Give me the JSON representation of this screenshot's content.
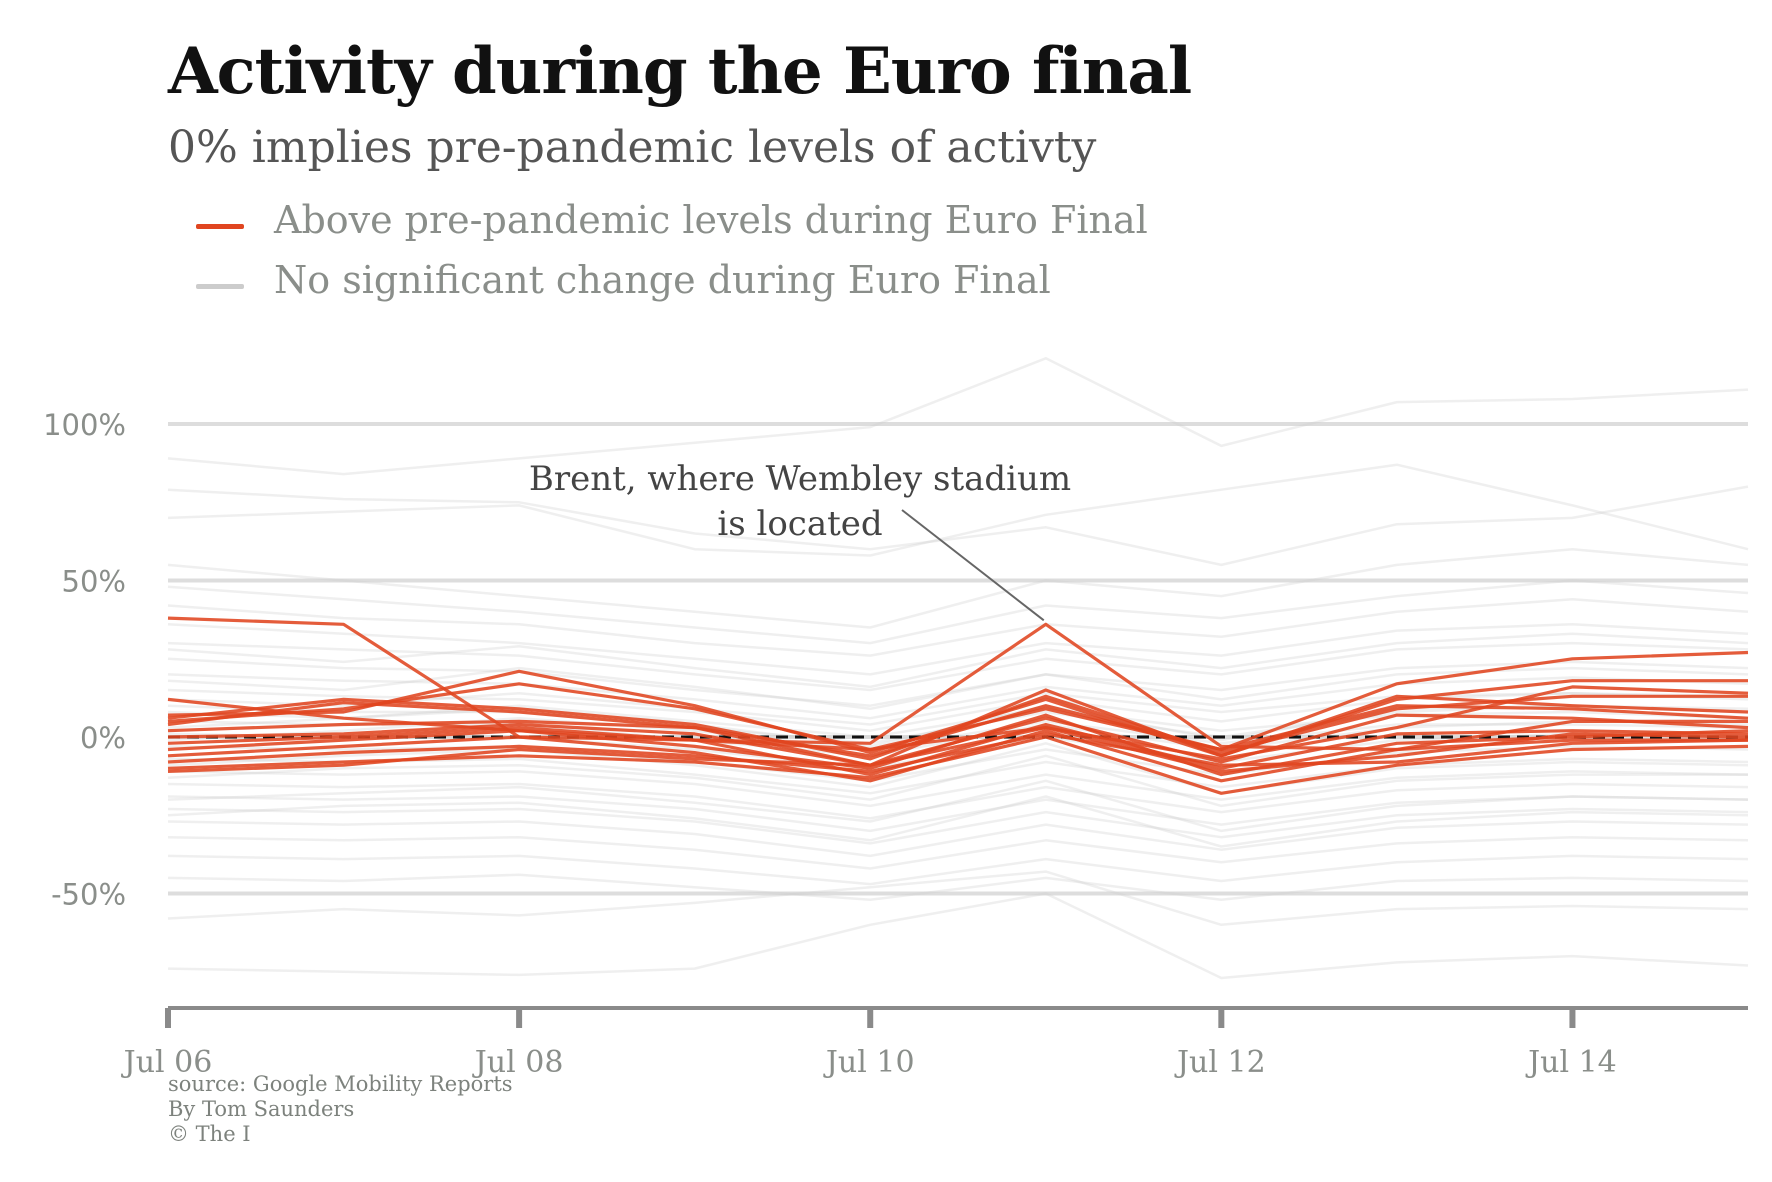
{
  "title": "Activity during the Euro final",
  "subtitle": "0% implies pre-pandemic levels of activty",
  "legend": [
    {
      "label": "Above pre-pandemic levels during Euro Final",
      "color": "#e04520"
    },
    {
      "label": "No significant change during Euro Final",
      "color": "#cccccc"
    }
  ],
  "annotation": {
    "line1": "Brent, where Wembley stadium",
    "line2": "is located",
    "target_x": "Jul 11",
    "target_y": 36
  },
  "credits": {
    "source": "source: Google Mobility Reports",
    "author": "By Tom Saunders",
    "copyright": "© The I"
  },
  "chart_data": {
    "type": "line",
    "x": [
      "Jul 06",
      "Jul 07",
      "Jul 08",
      "Jul 09",
      "Jul 10",
      "Jul 11",
      "Jul 12",
      "Jul 13",
      "Jul 14",
      "Jul 15"
    ],
    "x_ticks": [
      "Jul 06",
      "Jul 08",
      "Jul 10",
      "Jul 12",
      "Jul 14"
    ],
    "y_ticks": [
      100,
      50,
      0,
      -50
    ],
    "y_tick_labels": [
      "100%",
      "50%",
      "0%",
      "-50%"
    ],
    "ylim": [
      -88,
      120
    ],
    "reference_line": 0,
    "grid": true,
    "highlighted_color": "#e04520",
    "background_color": "#cccccc",
    "series": [
      {
        "group": "highlighted",
        "values": [
          38,
          36,
          0,
          -1,
          -2,
          36,
          -3,
          -4,
          5,
          5
        ]
      },
      {
        "group": "highlighted",
        "values": [
          12,
          6,
          2,
          -1,
          -4,
          3,
          -7,
          3,
          16,
          14
        ]
      },
      {
        "group": "highlighted",
        "values": [
          7,
          8,
          21,
          10,
          -5,
          12,
          -6,
          12,
          18,
          18
        ]
      },
      {
        "group": "highlighted",
        "values": [
          5,
          9,
          17,
          9,
          -4,
          9,
          -4,
          17,
          25,
          27
        ]
      },
      {
        "group": "highlighted",
        "values": [
          4,
          11,
          8,
          3,
          -9,
          15,
          -6,
          13,
          10,
          8
        ]
      },
      {
        "group": "highlighted",
        "values": [
          2,
          4,
          5,
          3,
          -6,
          10,
          -4,
          10,
          9,
          6
        ]
      },
      {
        "group": "highlighted",
        "values": [
          0,
          1,
          4,
          1,
          -9,
          6,
          -8,
          7,
          6,
          3
        ]
      },
      {
        "group": "highlighted",
        "values": [
          -2,
          0,
          3,
          -1,
          -12,
          4,
          -10,
          1,
          2,
          1
        ]
      },
      {
        "group": "highlighted",
        "values": [
          -4,
          -1,
          2,
          -3,
          -10,
          7,
          -12,
          -2,
          0,
          2
        ]
      },
      {
        "group": "highlighted",
        "values": [
          -6,
          -3,
          0,
          -5,
          -14,
          2,
          -14,
          -4,
          -1,
          -1
        ]
      },
      {
        "group": "highlighted",
        "values": [
          -8,
          -5,
          -3,
          -6,
          -11,
          1,
          -9,
          -8,
          -2,
          -1
        ]
      },
      {
        "group": "highlighted",
        "values": [
          -10,
          -8,
          -6,
          -8,
          -13,
          0,
          -18,
          -9,
          -4,
          -3
        ]
      },
      {
        "group": "highlighted",
        "values": [
          -11,
          -9,
          -4,
          -7,
          -9,
          3,
          -11,
          -6,
          1,
          0
        ]
      },
      {
        "group": "highlighted",
        "values": [
          6,
          12,
          9,
          4,
          -7,
          13,
          -5,
          9,
          13,
          13
        ]
      },
      {
        "group": "background",
        "values": [
          89,
          84,
          89,
          94,
          99,
          121,
          93,
          107,
          108,
          111
        ]
      },
      {
        "group": "background",
        "values": [
          79,
          76,
          75,
          65,
          60,
          67,
          55,
          68,
          70,
          80
        ]
      },
      {
        "group": "background",
        "values": [
          70,
          72,
          74,
          60,
          58,
          71,
          79,
          87,
          74,
          60
        ]
      },
      {
        "group": "background",
        "values": [
          -74,
          -75,
          -76,
          -74,
          -60,
          -50,
          -77,
          -72,
          -70,
          -73
        ]
      },
      {
        "group": "background",
        "values": [
          -58,
          -55,
          -57,
          -53,
          -48,
          -43,
          -60,
          -55,
          -54,
          -55
        ]
      },
      {
        "group": "background",
        "values": [
          55,
          50,
          45,
          40,
          35,
          50,
          45,
          55,
          60,
          55
        ]
      },
      {
        "group": "background",
        "values": [
          48,
          44,
          40,
          35,
          30,
          42,
          38,
          45,
          50,
          46
        ]
      },
      {
        "group": "background",
        "values": [
          42,
          38,
          36,
          30,
          26,
          36,
          32,
          40,
          44,
          40
        ]
      },
      {
        "group": "background",
        "values": [
          36,
          33,
          30,
          25,
          20,
          30,
          26,
          34,
          36,
          33
        ]
      },
      {
        "group": "background",
        "values": [
          30,
          28,
          26,
          20,
          15,
          25,
          20,
          28,
          30,
          28
        ]
      },
      {
        "group": "background",
        "values": [
          25,
          22,
          21,
          15,
          10,
          20,
          15,
          22,
          24,
          22
        ]
      },
      {
        "group": "background",
        "values": [
          20,
          18,
          17,
          12,
          6,
          16,
          10,
          17,
          19,
          17
        ]
      },
      {
        "group": "background",
        "values": [
          15,
          13,
          12,
          8,
          2,
          12,
          5,
          12,
          14,
          12
        ]
      },
      {
        "group": "background",
        "values": [
          10,
          8,
          8,
          3,
          -2,
          8,
          0,
          8,
          10,
          8
        ]
      },
      {
        "group": "background",
        "values": [
          5,
          4,
          4,
          -1,
          -6,
          4,
          -4,
          3,
          5,
          4
        ]
      },
      {
        "group": "background",
        "values": [
          1,
          0,
          0,
          -4,
          -10,
          0,
          -8,
          -1,
          1,
          0
        ]
      },
      {
        "group": "background",
        "values": [
          -3,
          -4,
          -3,
          -8,
          -14,
          -4,
          -12,
          -5,
          -3,
          -4
        ]
      },
      {
        "group": "background",
        "values": [
          -7,
          -8,
          -7,
          -12,
          -18,
          -8,
          -16,
          -9,
          -7,
          -8
        ]
      },
      {
        "group": "background",
        "values": [
          -11,
          -12,
          -11,
          -15,
          -22,
          -12,
          -20,
          -13,
          -11,
          -12
        ]
      },
      {
        "group": "background",
        "values": [
          -15,
          -16,
          -15,
          -19,
          -26,
          -16,
          -24,
          -17,
          -15,
          -16
        ]
      },
      {
        "group": "background",
        "values": [
          -19,
          -20,
          -19,
          -23,
          -30,
          -20,
          -28,
          -21,
          -19,
          -20
        ]
      },
      {
        "group": "background",
        "values": [
          -23,
          -24,
          -23,
          -27,
          -34,
          -24,
          -32,
          -25,
          -23,
          -24
        ]
      },
      {
        "group": "background",
        "values": [
          -27,
          -28,
          -27,
          -31,
          -38,
          -28,
          -36,
          -29,
          -27,
          -28
        ]
      },
      {
        "group": "background",
        "values": [
          -32,
          -33,
          -32,
          -36,
          -42,
          -33,
          -40,
          -34,
          -32,
          -33
        ]
      },
      {
        "group": "background",
        "values": [
          -38,
          -39,
          -38,
          -42,
          -47,
          -39,
          -46,
          -40,
          -38,
          -39
        ]
      },
      {
        "group": "background",
        "values": [
          -45,
          -46,
          -44,
          -48,
          -52,
          -45,
          -52,
          -46,
          -45,
          -46
        ]
      },
      {
        "group": "background",
        "values": [
          3,
          6,
          10,
          5,
          0,
          9,
          2,
          7,
          8,
          6
        ]
      },
      {
        "group": "background",
        "values": [
          -1,
          2,
          6,
          2,
          -4,
          5,
          -2,
          4,
          4,
          3
        ]
      },
      {
        "group": "background",
        "values": [
          12,
          10,
          14,
          9,
          4,
          14,
          8,
          13,
          14,
          13
        ]
      },
      {
        "group": "background",
        "values": [
          -9,
          -6,
          -4,
          -9,
          -16,
          -2,
          -18,
          -10,
          -8,
          -9
        ]
      },
      {
        "group": "background",
        "values": [
          -13,
          -10,
          -9,
          -13,
          -20,
          -6,
          -22,
          -14,
          -12,
          -12
        ]
      },
      {
        "group": "background",
        "values": [
          18,
          15,
          22,
          16,
          9,
          20,
          12,
          20,
          22,
          20
        ]
      },
      {
        "group": "background",
        "values": [
          -20,
          -18,
          -16,
          -21,
          -27,
          -14,
          -30,
          -22,
          -19,
          -20
        ]
      },
      {
        "group": "background",
        "values": [
          28,
          24,
          29,
          22,
          16,
          28,
          22,
          30,
          33,
          30
        ]
      },
      {
        "group": "background",
        "values": [
          -25,
          -22,
          -21,
          -26,
          -33,
          -19,
          -35,
          -27,
          -24,
          -25
        ]
      },
      {
        "group": "background",
        "values": [
          8,
          6,
          9,
          4,
          -3,
          10,
          -1,
          9,
          10,
          9
        ]
      }
    ]
  }
}
